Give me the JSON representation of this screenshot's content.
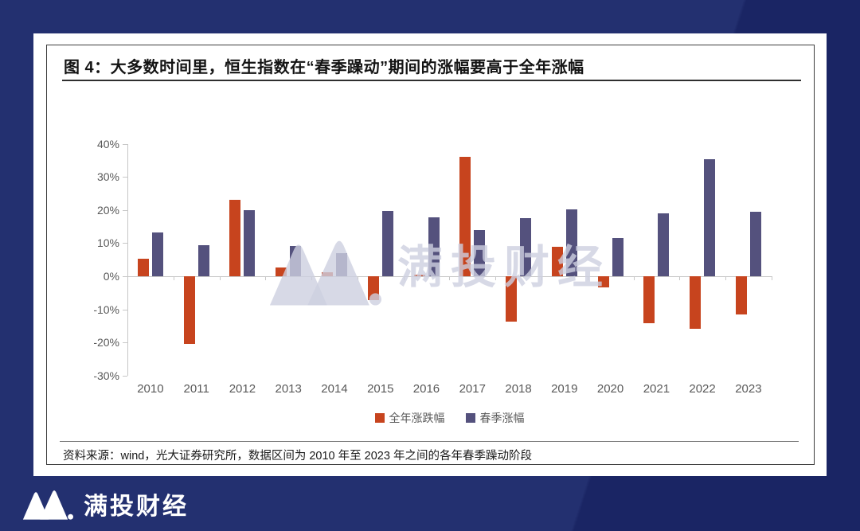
{
  "figure": {
    "title": "图 4：大多数时间里，恒生指数在“春季躁动”期间的涨幅要高于全年涨幅",
    "source": "资料来源：wind，光大证券研究所，数据区间为 2010 年至 2023 年之间的各年春季躁动阶段"
  },
  "watermark": {
    "text": "满投财经"
  },
  "footer": {
    "brand": "满投财经"
  },
  "theme": {
    "background_navy": "#233070",
    "background_navy_dark": "#1A2564",
    "card_background": "#FFFFFF",
    "axis_gray": "#C7C7C7",
    "label_gray": "#595959",
    "annual_bar_color": "#C7441E",
    "spring_bar_color": "#54517D"
  },
  "chart_data": {
    "type": "bar",
    "categories": [
      "2010",
      "2011",
      "2012",
      "2013",
      "2014",
      "2015",
      "2016",
      "2017",
      "2018",
      "2019",
      "2020",
      "2021",
      "2022",
      "2023"
    ],
    "series": [
      {
        "name": "全年涨跌幅",
        "color": "#C7441E",
        "values": [
          5.3,
          -20.5,
          23.0,
          2.7,
          1.3,
          -7.2,
          0.4,
          36.0,
          -13.6,
          9.0,
          -3.4,
          -14.1,
          -15.8,
          -11.5
        ]
      },
      {
        "name": "春季涨幅",
        "color": "#54517D",
        "values": [
          13.2,
          9.4,
          20.0,
          9.2,
          7.0,
          19.8,
          17.8,
          14.0,
          17.5,
          20.2,
          11.5,
          19.0,
          35.5,
          19.5
        ]
      }
    ],
    "title": "大多数时间里，恒生指数在“春季躁动”期间的涨幅要高于全年涨幅",
    "xlabel": "",
    "ylabel": "",
    "ylim": [
      -30,
      40
    ],
    "yticks": [
      40,
      30,
      20,
      10,
      0,
      -10,
      -20,
      -30
    ],
    "ytick_format": "percent",
    "grid": false,
    "legend_position": "bottom"
  }
}
